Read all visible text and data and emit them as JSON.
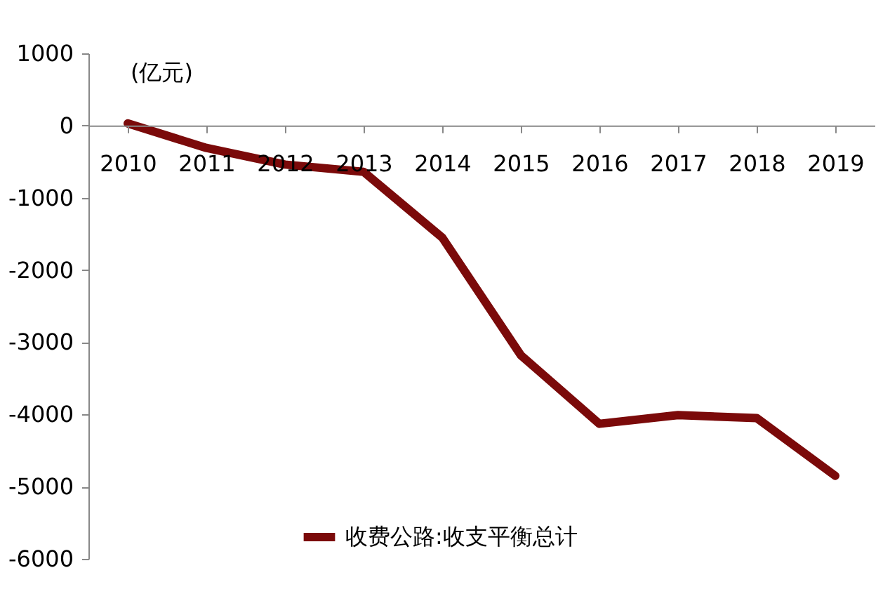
{
  "chart_data": {
    "type": "line",
    "annotations": [
      "(亿元)"
    ],
    "categories": [
      "2010",
      "2011",
      "2012",
      "2013",
      "2014",
      "2015",
      "2016",
      "2017",
      "2018",
      "2019"
    ],
    "series": [
      {
        "name": "收费公路:收支平衡总计",
        "color": "#7b0a0a",
        "values": [
          30,
          -310,
          -540,
          -640,
          -1550,
          -3180,
          -4130,
          -4010,
          -4050,
          -4850
        ]
      }
    ],
    "ylim": [
      -6000,
      1000
    ],
    "yticks": [
      -6000,
      -5000,
      -4000,
      -3000,
      -2000,
      -1000,
      0,
      1000
    ],
    "grid": false,
    "legend": "bottom",
    "marker": "none",
    "line_style": "solid"
  }
}
